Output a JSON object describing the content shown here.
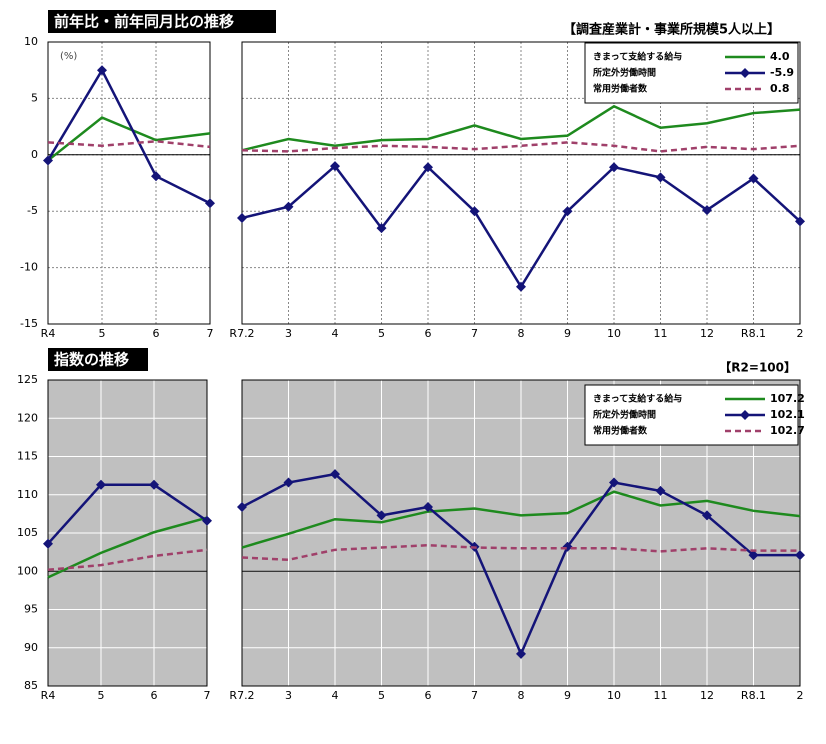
{
  "chart_data": [
    {
      "type": "line",
      "title": "前年比・前年同月比の推移",
      "unit_label": "(%)",
      "categories": [
        "R4",
        "5",
        "6",
        "7"
      ],
      "ylim": [
        -15,
        10
      ],
      "yticks": [
        -15,
        -10,
        -5,
        0,
        5,
        10
      ],
      "grid": true,
      "hline": 0,
      "series": [
        {
          "color": "#1e8a1e",
          "values": [
            -0.5,
            3.3,
            1.3,
            1.9
          ]
        },
        {
          "color": "#141478",
          "marker": "diamond",
          "values": [
            -0.5,
            7.5,
            -1.9,
            -4.3
          ]
        },
        {
          "color": "#a0406a",
          "dash": true,
          "values": [
            1.1,
            0.8,
            1.2,
            0.7
          ]
        }
      ]
    },
    {
      "type": "line",
      "subtitle": "【調査産業計・事業所規模5人以上】",
      "categories": [
        "R7.2",
        "3",
        "4",
        "5",
        "6",
        "7",
        "8",
        "9",
        "10",
        "11",
        "12",
        "R8.1",
        "2"
      ],
      "ylim": [
        -15,
        10
      ],
      "yticks": [
        -15,
        -10,
        -5,
        0,
        5,
        10
      ],
      "grid": true,
      "hline": 0,
      "legend": "upper right",
      "series": [
        {
          "name": "きまって支給する給与",
          "legend_label": "4.0",
          "color": "#1e8a1e",
          "values": [
            0.4,
            1.4,
            0.8,
            1.3,
            1.4,
            2.6,
            1.4,
            1.7,
            4.3,
            2.4,
            2.8,
            3.7,
            4.0
          ]
        },
        {
          "name": "所定外労働時間",
          "legend_label": "-5.9",
          "color": "#141478",
          "marker": "diamond",
          "values": [
            -5.6,
            -4.6,
            -1.0,
            -6.5,
            -1.1,
            -5.0,
            -11.7,
            -5.0,
            -1.1,
            -2.0,
            -4.9,
            -2.1,
            -5.9
          ]
        },
        {
          "name": "常用労働者数",
          "legend_label": "0.8",
          "color": "#a0406a",
          "dash": true,
          "values": [
            0.4,
            0.3,
            0.6,
            0.8,
            0.7,
            0.5,
            0.8,
            1.1,
            0.8,
            0.3,
            0.7,
            0.5,
            0.8
          ]
        }
      ]
    },
    {
      "type": "line",
      "title": "指数の推移",
      "categories": [
        "R4",
        "5",
        "6",
        "7"
      ],
      "ylim": [
        85,
        125
      ],
      "yticks": [
        85,
        90,
        95,
        100,
        105,
        110,
        115,
        120,
        125
      ],
      "grid": true,
      "hline": 100,
      "background": "#c0c0c0",
      "series": [
        {
          "color": "#1e8a1e",
          "values": [
            99.2,
            102.4,
            105.1,
            107.0
          ]
        },
        {
          "color": "#141478",
          "marker": "diamond",
          "values": [
            103.6,
            111.3,
            111.3,
            106.6
          ]
        },
        {
          "color": "#a0406a",
          "dash": true,
          "values": [
            100.2,
            100.8,
            102.0,
            102.8
          ]
        }
      ]
    },
    {
      "type": "line",
      "note": "【R2=100】",
      "categories": [
        "R7.2",
        "3",
        "4",
        "5",
        "6",
        "7",
        "8",
        "9",
        "10",
        "11",
        "12",
        "R8.1",
        "2"
      ],
      "ylim": [
        85,
        125
      ],
      "yticks": [
        85,
        90,
        95,
        100,
        105,
        110,
        115,
        120,
        125
      ],
      "grid": true,
      "hline": 100,
      "background": "#c0c0c0",
      "legend": "upper right",
      "series": [
        {
          "name": "きまって支給する給与",
          "legend_label": "107.2",
          "color": "#1e8a1e",
          "values": [
            103.1,
            104.9,
            106.8,
            106.4,
            107.8,
            108.2,
            107.3,
            107.6,
            110.4,
            108.6,
            109.2,
            107.9,
            107.2
          ]
        },
        {
          "name": "所定外労働時間",
          "legend_label": "102.1",
          "color": "#141478",
          "marker": "diamond",
          "values": [
            108.4,
            111.6,
            112.7,
            107.3,
            108.4,
            103.2,
            89.2,
            103.2,
            111.6,
            110.5,
            107.3,
            102.1,
            102.1
          ]
        },
        {
          "name": "常用労働者数",
          "legend_label": "102.7",
          "color": "#a0406a",
          "dash": true,
          "values": [
            101.8,
            101.5,
            102.8,
            103.1,
            103.4,
            103.1,
            103.0,
            103.0,
            103.0,
            102.6,
            103.0,
            102.7,
            102.7
          ]
        }
      ]
    }
  ]
}
